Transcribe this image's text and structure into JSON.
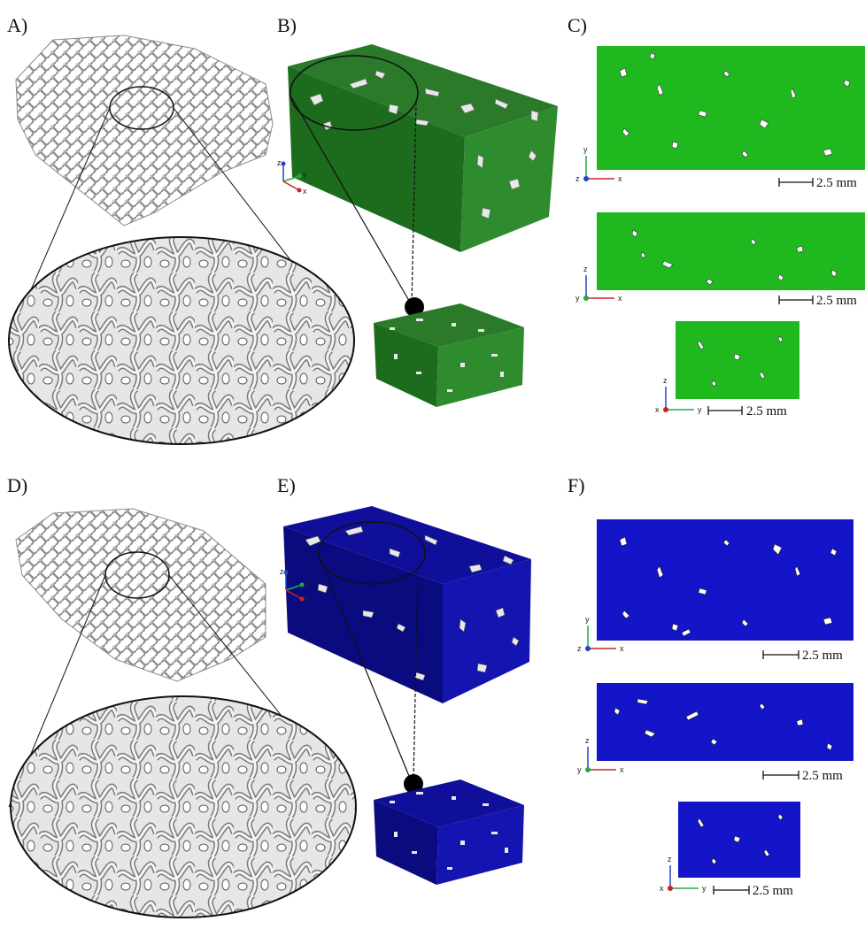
{
  "figure": {
    "panels": {
      "A": {
        "label": "A)"
      },
      "B": {
        "label": "B)"
      },
      "C": {
        "label": "C)"
      },
      "D": {
        "label": "D)"
      },
      "E": {
        "label": "E)"
      },
      "F": {
        "label": "F)"
      }
    },
    "scale_bar_text": "2.5 mm",
    "axis_letters": {
      "x": "x",
      "y": "y",
      "z": "z"
    },
    "colors": {
      "green": "#1fb81f",
      "green_dark": "#1d6b1d",
      "blue": "#1414c8",
      "blue_dark": "#0b0b80",
      "bone": "#d9d9d9",
      "pore": "#ffffff",
      "axis_x": "#cc2222",
      "axis_y": "#22aa44",
      "axis_z": "#2244cc"
    }
  }
}
